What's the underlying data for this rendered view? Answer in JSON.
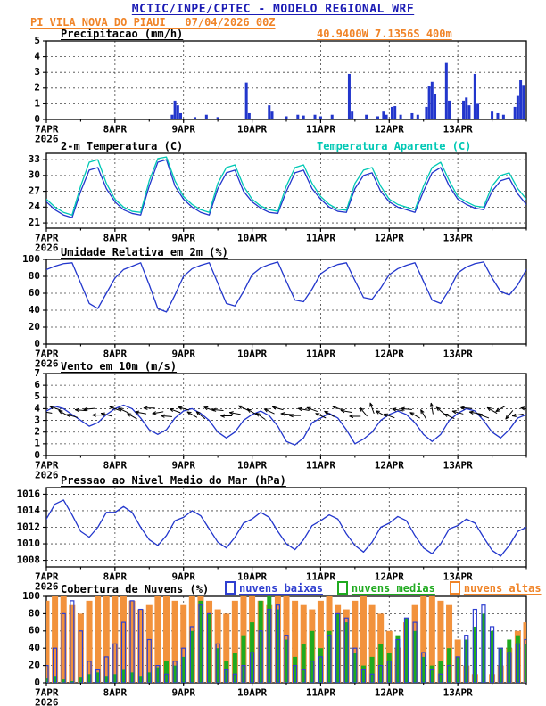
{
  "header": {
    "title": "MCTIC/INPE/CPTEC - MODELO REGIONAL WRF",
    "subtitle": "PI VILA NOVA DO PIAUI   07/04/2026 00Z",
    "title_color": "#1a1ab4",
    "accent_orange": "#f08428"
  },
  "chart_data": {
    "type": "meteogram",
    "time": {
      "start_hour": 0,
      "end_hour": 168,
      "step_hours": 3,
      "xtick_hours": [
        0,
        24,
        48,
        72,
        96,
        120,
        144
      ],
      "xtick_labels": [
        "7APR",
        "8APR",
        "9APR",
        "10APR",
        "11APR",
        "12APR",
        "13APR"
      ],
      "year_label": "2026"
    },
    "panels": [
      {
        "id": "precip",
        "type": "bar",
        "title": "Precipitacao (mm/h)",
        "right_label": "40.9400W 7.1356S 400m",
        "right_label_color": "#f08428",
        "ylim": [
          0,
          5
        ],
        "yticks": [
          0,
          1,
          2,
          3,
          4,
          5
        ],
        "bar_color": "#2236cc",
        "bars": [
          [
            44,
            0.3
          ],
          [
            45,
            1.2
          ],
          [
            46,
            0.9
          ],
          [
            47,
            0.4
          ],
          [
            52,
            0.15
          ],
          [
            56,
            0.3
          ],
          [
            60,
            0.15
          ],
          [
            70,
            2.35
          ],
          [
            71,
            0.4
          ],
          [
            78,
            0.9
          ],
          [
            79,
            0.5
          ],
          [
            84,
            0.2
          ],
          [
            88,
            0.3
          ],
          [
            90,
            0.25
          ],
          [
            94,
            0.3
          ],
          [
            96,
            0.2
          ],
          [
            100,
            0.3
          ],
          [
            106,
            2.9
          ],
          [
            107,
            0.5
          ],
          [
            112,
            0.3
          ],
          [
            116,
            0.2
          ],
          [
            118,
            0.5
          ],
          [
            119,
            0.3
          ],
          [
            121,
            0.8
          ],
          [
            122,
            0.85
          ],
          [
            124,
            0.3
          ],
          [
            128,
            0.4
          ],
          [
            130,
            0.3
          ],
          [
            133,
            0.8
          ],
          [
            134,
            2.1
          ],
          [
            135,
            2.4
          ],
          [
            136,
            1.6
          ],
          [
            140,
            3.6
          ],
          [
            141,
            1.2
          ],
          [
            146,
            1.2
          ],
          [
            147,
            1.4
          ],
          [
            148,
            0.9
          ],
          [
            150,
            2.9
          ],
          [
            151,
            1.0
          ],
          [
            156,
            0.5
          ],
          [
            158,
            0.4
          ],
          [
            160,
            0.3
          ],
          [
            164,
            0.8
          ],
          [
            165,
            1.5
          ],
          [
            166,
            2.5
          ],
          [
            167,
            2.2
          ]
        ]
      },
      {
        "id": "temp",
        "type": "line",
        "title": "2-m Temperatura (C)",
        "right_label": "Temperatura Aparente (C)",
        "right_label_color": "#00c8b4",
        "ylim": [
          20,
          34.2
        ],
        "yticks": [
          21,
          24,
          27,
          30,
          33
        ],
        "series": [
          {
            "name": "temperatura",
            "color": "#2236cc",
            "values": [
              25.0,
              23.5,
              22.5,
              22.0,
              27.0,
              31.0,
              31.5,
              27.5,
              25.0,
              23.5,
              22.8,
              22.5,
              28.0,
              32.5,
              33.0,
              28.0,
              25.5,
              24.0,
              23.0,
              22.5,
              27.5,
              30.5,
              31.0,
              27.0,
              25.0,
              23.8,
              23.0,
              22.8,
              27.0,
              30.5,
              31.0,
              27.5,
              25.5,
              24.0,
              23.2,
              23.0,
              27.5,
              30.0,
              30.5,
              27.0,
              25.0,
              24.0,
              23.5,
              23.0,
              27.0,
              30.5,
              31.5,
              28.0,
              25.5,
              24.5,
              23.8,
              23.5,
              27.0,
              29.0,
              29.5,
              26.5,
              24.5
            ]
          },
          {
            "name": "temperatura_aparente",
            "color": "#00c8b4",
            "values": [
              25.5,
              24.0,
              23.0,
              22.5,
              28.0,
              32.5,
              33.0,
              28.5,
              25.5,
              24.0,
              23.2,
              23.0,
              29.0,
              33.2,
              33.5,
              29.0,
              26.0,
              24.5,
              23.5,
              23.0,
              28.5,
              31.5,
              32.0,
              28.0,
              25.5,
              24.2,
              23.5,
              23.2,
              28.0,
              31.5,
              32.0,
              28.5,
              26.0,
              24.5,
              23.6,
              23.4,
              28.5,
              31.0,
              31.5,
              28.0,
              25.5,
              24.5,
              24.0,
              23.5,
              28.0,
              31.5,
              32.5,
              29.0,
              26.0,
              25.0,
              24.2,
              24.0,
              28.0,
              30.0,
              30.5,
              27.5,
              25.5
            ]
          }
        ]
      },
      {
        "id": "umid",
        "type": "line",
        "title": "Umidade Relativa em 2m (%)",
        "ylim": [
          0,
          100
        ],
        "yticks": [
          0,
          20,
          40,
          60,
          80,
          100
        ],
        "series": [
          {
            "name": "umidade_relativa",
            "color": "#2236cc",
            "values": [
              88,
              92,
              95,
              96,
              72,
              48,
              42,
              60,
              78,
              88,
              92,
              96,
              70,
              42,
              38,
              58,
              80,
              89,
              93,
              96,
              72,
              48,
              45,
              62,
              82,
              90,
              94,
              97,
              74,
              52,
              50,
              65,
              83,
              90,
              94,
              96,
              75,
              55,
              53,
              66,
              82,
              89,
              93,
              96,
              74,
              52,
              48,
              64,
              84,
              91,
              95,
              97,
              78,
              62,
              58,
              70,
              88
            ]
          }
        ]
      },
      {
        "id": "vento",
        "type": "line",
        "title": "Vento em 10m (m/s)",
        "ylim": [
          0,
          7
        ],
        "yticks": [
          0,
          1,
          2,
          3,
          4,
          5,
          6,
          7
        ],
        "series": [
          {
            "name": "velocidade_vento",
            "color": "#2236cc",
            "values": [
              3.8,
              4.2,
              4.0,
              3.5,
              3.0,
              2.5,
              2.8,
              3.5,
              4.0,
              4.3,
              4.0,
              3.2,
              2.2,
              1.8,
              2.2,
              3.2,
              3.8,
              4.0,
              3.6,
              3.0,
              2.0,
              1.5,
              2.0,
              3.0,
              3.5,
              3.8,
              3.4,
              2.5,
              1.2,
              0.9,
              1.5,
              2.8,
              3.2,
              3.6,
              3.2,
              2.2,
              1.0,
              1.4,
              2.0,
              3.0,
              3.5,
              3.8,
              3.5,
              2.8,
              1.8,
              1.2,
              1.8,
              3.0,
              3.6,
              4.0,
              3.8,
              3.0,
              2.0,
              1.5,
              2.2,
              3.2,
              3.5
            ]
          }
        ],
        "barbs": {
          "color": "#000000",
          "plot_level": 3.7,
          "dirs_deg": [
            100,
            110,
            120,
            105,
            95,
            85,
            90,
            105,
            110,
            115,
            120,
            100,
            90,
            80,
            95,
            110,
            105,
            120,
            130,
            110,
            95,
            90,
            100,
            115,
            120,
            125,
            115,
            105,
            95,
            90,
            100,
            110,
            115,
            120,
            110,
            100,
            90,
            140,
            160,
            120,
            110,
            100,
            95,
            120,
            150,
            170,
            130,
            115,
            105,
            95,
            100,
            110,
            120,
            60,
            40,
            80,
            100
          ]
        }
      },
      {
        "id": "press",
        "type": "line",
        "title": "Pressao ao Nivel Medio do Mar (hPa)",
        "ylim": [
          1007.2,
          1016.8
        ],
        "yticks": [
          1008,
          1010,
          1012,
          1014,
          1016
        ],
        "series": [
          {
            "name": "pressao_nivel_mar",
            "color": "#2236cc",
            "values": [
              1013.0,
              1014.8,
              1015.3,
              1013.5,
              1011.5,
              1010.8,
              1012.0,
              1013.8,
              1013.8,
              1014.5,
              1013.8,
              1012.0,
              1010.5,
              1009.8,
              1011.0,
              1012.8,
              1013.2,
              1014.0,
              1013.4,
              1011.8,
              1010.2,
              1009.5,
              1010.8,
              1012.5,
              1013.0,
              1013.8,
              1013.2,
              1011.5,
              1010.0,
              1009.3,
              1010.5,
              1012.2,
              1012.8,
              1013.5,
              1013.0,
              1011.2,
              1009.8,
              1009.0,
              1010.2,
              1012.0,
              1012.5,
              1013.3,
              1012.8,
              1011.0,
              1009.5,
              1008.8,
              1010.0,
              1011.8,
              1012.2,
              1013.0,
              1012.5,
              1010.8,
              1009.2,
              1008.5,
              1009.8,
              1011.5,
              1012.0
            ]
          }
        ]
      },
      {
        "id": "nuvens",
        "type": "bars-multi",
        "title": "Cobertura de Nuvens (%)",
        "ylim": [
          0,
          100
        ],
        "yticks": [
          0,
          20,
          40,
          60,
          80,
          100
        ],
        "legend": [
          {
            "label": "nuvens baixas",
            "color": "#2f3fd0"
          },
          {
            "label": "nuvens medias",
            "color": "#1faa1f"
          },
          {
            "label": "nuvens altas",
            "color": "#f08428"
          }
        ],
        "series": [
          {
            "name": "nuvens_altas",
            "color": "#f2923c",
            "style": "fill",
            "values": [
              95,
              100,
              100,
              90,
              80,
              95,
              100,
              100,
              100,
              100,
              95,
              85,
              90,
              100,
              100,
              95,
              90,
              100,
              100,
              95,
              85,
              80,
              95,
              100,
              100,
              95,
              90,
              100,
              100,
              95,
              90,
              85,
              95,
              100,
              90,
              85,
              95,
              100,
              90,
              80,
              60,
              40,
              70,
              90,
              100,
              100,
              95,
              90,
              50,
              20,
              10,
              0,
              10,
              20,
              40,
              60,
              70
            ]
          },
          {
            "name": "nuvens_medias",
            "color": "#1faa1f",
            "style": "fill",
            "values": [
              5,
              8,
              4,
              2,
              6,
              10,
              12,
              8,
              10,
              15,
              12,
              8,
              12,
              18,
              25,
              20,
              30,
              60,
              95,
              80,
              40,
              25,
              35,
              55,
              70,
              95,
              100,
              85,
              50,
              30,
              45,
              60,
              40,
              60,
              80,
              70,
              35,
              20,
              30,
              45,
              35,
              55,
              75,
              60,
              30,
              20,
              25,
              40,
              30,
              50,
              65,
              80,
              60,
              40,
              50,
              55,
              45
            ]
          },
          {
            "name": "nuvens_baixas",
            "color": "#2f3fd0",
            "style": "outline",
            "values": [
              20,
              40,
              80,
              95,
              60,
              25,
              15,
              30,
              45,
              70,
              95,
              85,
              50,
              20,
              10,
              25,
              40,
              65,
              90,
              80,
              45,
              15,
              10,
              20,
              35,
              60,
              85,
              90,
              55,
              20,
              15,
              25,
              30,
              55,
              80,
              75,
              40,
              15,
              10,
              20,
              25,
              50,
              75,
              70,
              35,
              15,
              10,
              20,
              30,
              55,
              85,
              90,
              65,
              40,
              35,
              45,
              50
            ]
          }
        ]
      }
    ]
  }
}
